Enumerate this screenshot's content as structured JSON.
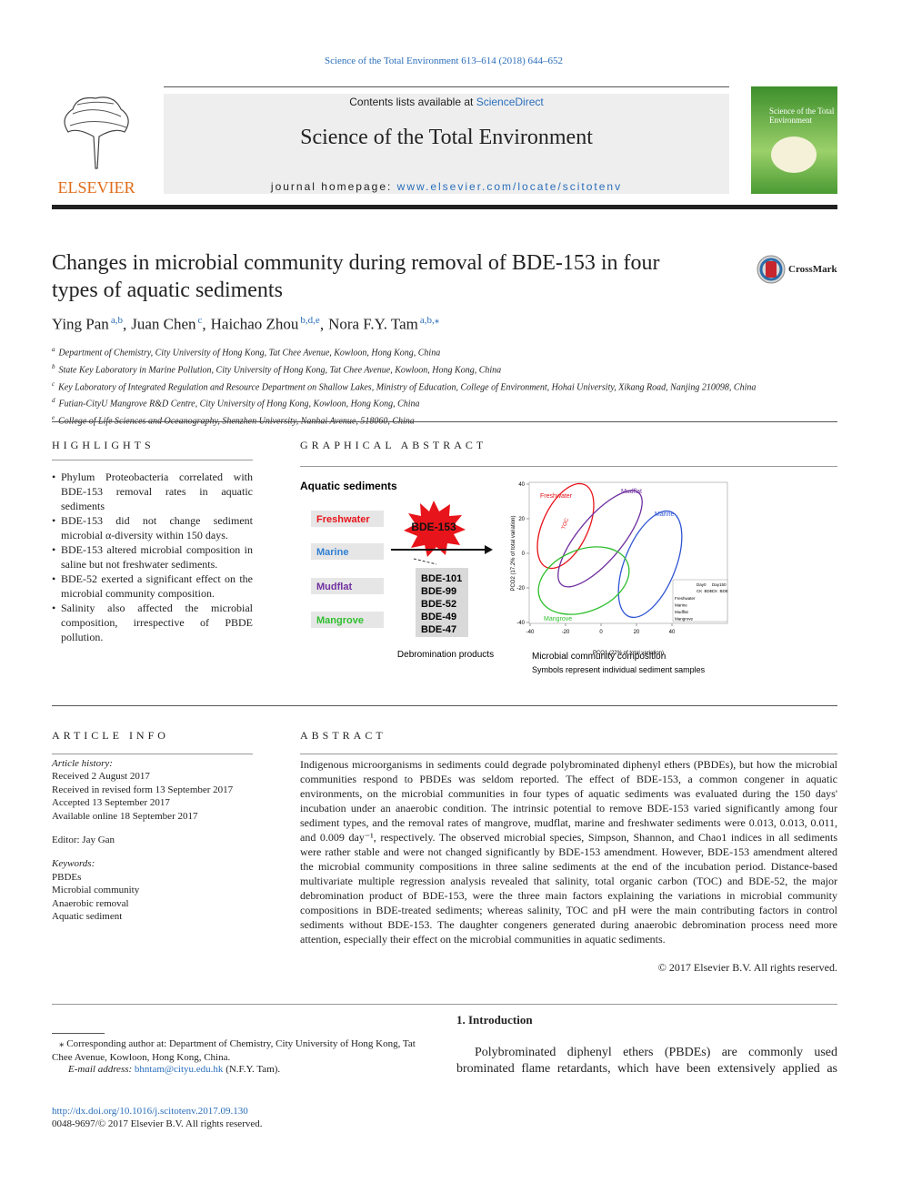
{
  "header": {
    "citation": "Science of the Total Environment 613–614 (2018) 644–652",
    "contents_prefix": "Contents lists available at",
    "contents_link": "ScienceDirect",
    "journal_title": "Science of the Total Environment",
    "homepage_prefix": "journal homepage:",
    "homepage_url": "www.elsevier.com/locate/scitotenv",
    "publisher": "ELSEVIER",
    "crossmark": "CrossMark"
  },
  "article": {
    "title": "Changes in microbial community during removal of BDE-153 in four types of aquatic sediments",
    "authors": [
      {
        "name": "Ying Pan",
        "affil": "a,b",
        "sep": ","
      },
      {
        "name": "Juan Chen",
        "affil": "c",
        "sep": ","
      },
      {
        "name": "Haichao Zhou",
        "affil": "b,d,e",
        "sep": ","
      },
      {
        "name": "Nora F.Y. Tam",
        "affil": "a,b,⁎"
      }
    ],
    "affiliations": [
      {
        "mark": "a",
        "text": "Department of Chemistry, City University of Hong Kong, Tat Chee Avenue, Kowloon, Hong Kong, China"
      },
      {
        "mark": "b",
        "text": "State Key Laboratory in Marine Pollution, City University of Hong Kong, Tat Chee Avenue, Kowloon, Hong Kong, China"
      },
      {
        "mark": "c",
        "text": "Key Laboratory of Integrated Regulation and Resource Department on Shallow Lakes, Ministry of Education, College of Environment, Hohai University, Xikang Road, Nanjing 210098, China"
      },
      {
        "mark": "d",
        "text": "Futian-CityU Mangrove R&D Centre, City University of Hong Kong, Kowloon, Hong Kong, China"
      },
      {
        "mark": "e",
        "text": "College of Life Sciences and Oceanography, Shenzhen University, Nanhai Avenue, 518060, China"
      }
    ]
  },
  "highlights": {
    "heading": "HIGHLIGHTS",
    "items": [
      "Phylum Proteobacteria correlated with BDE-153 removal rates in aquatic sediments",
      "BDE-153 did not change sediment microbial α-diversity within 150 days.",
      "BDE-153 altered microbial composition in saline but not freshwater sediments.",
      "BDE-52 exerted a significant effect on the microbial community composition.",
      "Salinity also affected the microbial composition, irrespective of PBDE pollution."
    ]
  },
  "graphical_abstract": {
    "heading": "GRAPHICAL ABSTRACT",
    "title": "Aquatic sediments",
    "sediments": [
      "Freshwater",
      "Marine",
      "Mudflat",
      "Mangrove"
    ],
    "compound": "BDE-153",
    "products": [
      "BDE-101",
      "BDE-99",
      "BDE-52",
      "BDE-49",
      "BDE-47"
    ],
    "products_caption": "Debromination products",
    "plot": {
      "groups": [
        "Freshwater",
        "Mudflat",
        "Marine",
        "Mangrove"
      ],
      "annotation": "TOC",
      "x_label": "PCO1 (22% of total variation)",
      "y_label": "PCO2 (17.2% of total variation)",
      "xticks": [
        -40,
        -20,
        0,
        20,
        40
      ],
      "yticks": [
        40,
        20,
        0,
        -20,
        -40
      ],
      "legend_days": [
        "Day0",
        "Day150"
      ],
      "legend_headers": [
        "CK",
        "BDE",
        "CK",
        "BDE"
      ],
      "legend_rows": [
        "Freshwater",
        "Marine",
        "Mudflat",
        "Mangrove"
      ]
    },
    "caption": "Microbial community composition",
    "subcaption": "Symbols represent individual sediment samples"
  },
  "article_info": {
    "heading": "ARTICLE INFO",
    "history_label": "Article history:",
    "history": [
      "Received 2 August 2017",
      "Received in revised form 13 September 2017",
      "Accepted 13 September 2017",
      "Available online 18 September 2017"
    ],
    "editor": "Editor: Jay Gan",
    "keywords_label": "Keywords:",
    "keywords": [
      "PBDEs",
      "Microbial community",
      "Anaerobic removal",
      "Aquatic sediment"
    ]
  },
  "abstract": {
    "heading": "ABSTRACT",
    "text": "Indigenous microorganisms in sediments could degrade polybrominated diphenyl ethers (PBDEs), but how the microbial communities respond to PBDEs was seldom reported. The effect of BDE-153, a common congener in aquatic environments, on the microbial communities in four types of aquatic sediments was evaluated during the 150 days' incubation under an anaerobic condition. The intrinsic potential to remove BDE-153 varied significantly among four sediment types, and the removal rates of mangrove, mudflat, marine and freshwater sediments were 0.013, 0.013, 0.011, and 0.009 day⁻¹, respectively. The observed microbial species, Simpson, Shannon, and Chao1 indices in all sediments were rather stable and were not changed significantly by BDE-153 amendment. However, BDE-153 amendment altered the microbial community compositions in three saline sediments at the end of the incubation period. Distance-based multivariate multiple regression analysis revealed that salinity, total organic carbon (TOC) and BDE-52, the major debromination product of BDE-153, were the three main factors explaining the variations in microbial community compositions in BDE-treated sediments; whereas salinity, TOC and pH were the main contributing factors in control sediments without BDE-153. The daughter congeners generated during anaerobic debromination process need more attention, especially their effect on the microbial communities in aquatic sediments.",
    "copyright": "© 2017 Elsevier B.V. All rights reserved."
  },
  "introduction": {
    "heading": "1. Introduction",
    "text": "Polybrominated diphenyl ethers (PBDEs) are commonly used brominated flame retardants, which have been extensively applied as"
  },
  "footnotes": {
    "corresponding": "⁎ Corresponding author at: Department of Chemistry, City University of Hong Kong, Tat Chee Avenue, Kowloon, Hong Kong, China.",
    "email_label": "E-mail address:",
    "email": "bhntam@cityu.edu.hk",
    "email_suffix": "(N.F.Y. Tam).",
    "doi": "http://dx.doi.org/10.1016/j.scitotenv.2017.09.130",
    "issn": "0048-9697/© 2017 Elsevier B.V. All rights reserved."
  }
}
